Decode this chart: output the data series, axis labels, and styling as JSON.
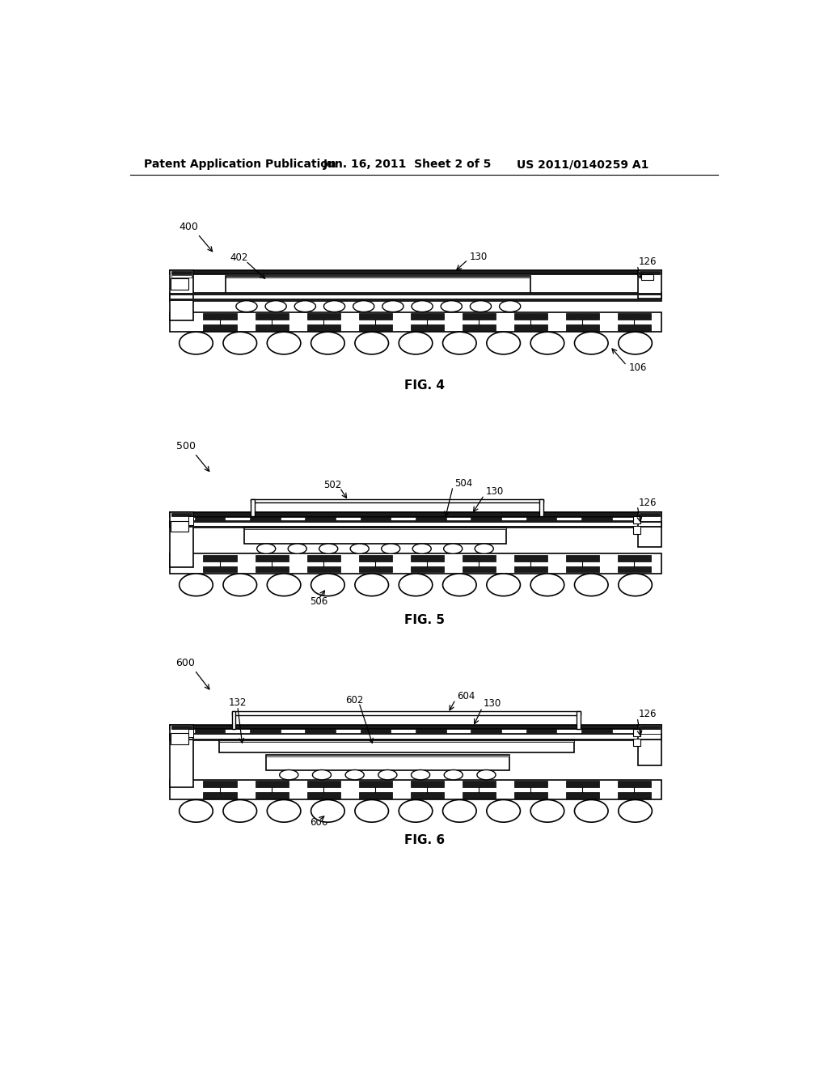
{
  "header_left": "Patent Application Publication",
  "header_mid": "Jun. 16, 2011  Sheet 2 of 5",
  "header_right": "US 2011/0140259 A1",
  "bg_color": "#ffffff",
  "lc": "#000000",
  "dark": "#1a1a1a",
  "gray": "#888888",
  "lgray": "#cccccc",
  "fig4_label": "FIG. 4",
  "fig5_label": "FIG. 5",
  "fig6_label": "FIG. 6"
}
